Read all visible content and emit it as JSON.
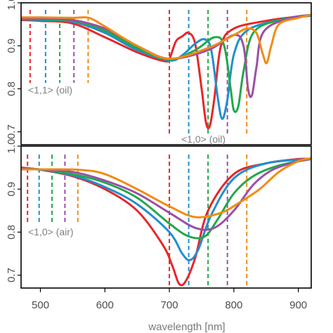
{
  "chart_data": [
    {
      "type": "line",
      "panel": "top",
      "xlim": [
        470,
        920
      ],
      "ylim": [
        0.67,
        1.0
      ],
      "y_ticks": [
        0.7,
        0.8,
        0.9,
        1.0
      ],
      "y_tick_labels": [
        "0.7",
        "0.8",
        "0.9",
        "1.0"
      ],
      "annotations": [
        "<1,1> (oil)",
        "<1,0> (oil)"
      ],
      "markers": [
        {
          "x": 484,
          "color": "#e8262a"
        },
        {
          "x": 508,
          "color": "#1f8fd1"
        },
        {
          "x": 530,
          "color": "#22a84a"
        },
        {
          "x": 552,
          "color": "#9b4fa8"
        },
        {
          "x": 574,
          "color": "#f08c13"
        },
        {
          "x": 700,
          "color": "#e8262a"
        },
        {
          "x": 730,
          "color": "#1f8fd1"
        },
        {
          "x": 760,
          "color": "#22a84a"
        },
        {
          "x": 790,
          "color": "#9b4fa8"
        },
        {
          "x": 820,
          "color": "#f08c13"
        }
      ],
      "series": [
        {
          "color": "#e8262a",
          "points": [
            [
              470,
              0.96
            ],
            [
              500,
              0.958
            ],
            [
              550,
              0.952
            ],
            [
              600,
              0.92
            ],
            [
              650,
              0.885
            ],
            [
              690,
              0.865
            ],
            [
              700,
              0.87
            ],
            [
              710,
              0.91
            ],
            [
              720,
              0.922
            ],
            [
              730,
              0.93
            ],
            [
              740,
              0.905
            ],
            [
              750,
              0.8
            ],
            [
              757,
              0.72
            ],
            [
              763,
              0.715
            ],
            [
              770,
              0.78
            ],
            [
              780,
              0.9
            ],
            [
              800,
              0.94
            ],
            [
              850,
              0.958
            ],
            [
              900,
              0.968
            ],
            [
              920,
              0.97
            ]
          ]
        },
        {
          "color": "#1f8fd1",
          "points": [
            [
              470,
              0.962
            ],
            [
              500,
              0.96
            ],
            [
              550,
              0.956
            ],
            [
              600,
              0.93
            ],
            [
              650,
              0.89
            ],
            [
              700,
              0.866
            ],
            [
              720,
              0.878
            ],
            [
              740,
              0.905
            ],
            [
              755,
              0.915
            ],
            [
              765,
              0.89
            ],
            [
              775,
              0.78
            ],
            [
              782,
              0.73
            ],
            [
              790,
              0.775
            ],
            [
              800,
              0.88
            ],
            [
              820,
              0.935
            ],
            [
              870,
              0.96
            ],
            [
              920,
              0.97
            ]
          ]
        },
        {
          "color": "#22a84a",
          "points": [
            [
              470,
              0.963
            ],
            [
              500,
              0.962
            ],
            [
              550,
              0.958
            ],
            [
              600,
              0.935
            ],
            [
              650,
              0.895
            ],
            [
              700,
              0.868
            ],
            [
              740,
              0.89
            ],
            [
              770,
              0.92
            ],
            [
              785,
              0.9
            ],
            [
              795,
              0.8
            ],
            [
              800,
              0.75
            ],
            [
              807,
              0.76
            ],
            [
              815,
              0.84
            ],
            [
              830,
              0.93
            ],
            [
              870,
              0.96
            ],
            [
              920,
              0.972
            ]
          ]
        },
        {
          "color": "#9b4fa8",
          "points": [
            [
              470,
              0.964
            ],
            [
              500,
              0.964
            ],
            [
              550,
              0.96
            ],
            [
              600,
              0.94
            ],
            [
              650,
              0.9
            ],
            [
              700,
              0.87
            ],
            [
              760,
              0.89
            ],
            [
              800,
              0.925
            ],
            [
              815,
              0.9
            ],
            [
              822,
              0.8
            ],
            [
              828,
              0.785
            ],
            [
              835,
              0.85
            ],
            [
              845,
              0.93
            ],
            [
              880,
              0.962
            ],
            [
              920,
              0.972
            ]
          ]
        },
        {
          "color": "#f08c13",
          "points": [
            [
              470,
              0.966
            ],
            [
              500,
              0.966
            ],
            [
              550,
              0.965
            ],
            [
              575,
              0.965
            ],
            [
              600,
              0.945
            ],
            [
              650,
              0.9
            ],
            [
              700,
              0.87
            ],
            [
              760,
              0.895
            ],
            [
              800,
              0.925
            ],
            [
              820,
              0.94
            ],
            [
              835,
              0.93
            ],
            [
              845,
              0.88
            ],
            [
              851,
              0.86
            ],
            [
              858,
              0.9
            ],
            [
              870,
              0.95
            ],
            [
              900,
              0.965
            ],
            [
              920,
              0.972
            ]
          ]
        }
      ]
    },
    {
      "type": "line",
      "panel": "bottom",
      "xlim": [
        470,
        920
      ],
      "ylim": [
        0.67,
        1.0
      ],
      "y_ticks": [
        0.7,
        0.8,
        0.9,
        1.0
      ],
      "y_tick_labels": [
        "0.7",
        "0.8",
        "0.9",
        "1.0"
      ],
      "x_ticks": [
        500,
        600,
        700,
        800,
        900
      ],
      "x_tick_labels": [
        "500",
        "600",
        "700",
        "800",
        "900"
      ],
      "xlabel": "wavelength [nm]",
      "annotations": [
        "<1,0> (air)"
      ],
      "markers": [
        {
          "x": 480,
          "color": "#e8262a"
        },
        {
          "x": 498,
          "color": "#1f8fd1"
        },
        {
          "x": 518,
          "color": "#22a84a"
        },
        {
          "x": 538,
          "color": "#9b4fa8"
        },
        {
          "x": 558,
          "color": "#f08c13"
        },
        {
          "x": 700,
          "color": "#e8262a"
        },
        {
          "x": 730,
          "color": "#1f8fd1"
        },
        {
          "x": 760,
          "color": "#22a84a"
        },
        {
          "x": 790,
          "color": "#9b4fa8"
        },
        {
          "x": 820,
          "color": "#f08c13"
        }
      ],
      "series": [
        {
          "color": "#e8262a",
          "points": [
            [
              470,
              0.95
            ],
            [
              500,
              0.945
            ],
            [
              550,
              0.93
            ],
            [
              600,
              0.9
            ],
            [
              650,
              0.85
            ],
            [
              690,
              0.77
            ],
            [
              705,
              0.72
            ],
            [
              715,
              0.68
            ],
            [
              725,
              0.685
            ],
            [
              740,
              0.74
            ],
            [
              760,
              0.85
            ],
            [
              800,
              0.935
            ],
            [
              850,
              0.96
            ],
            [
              900,
              0.97
            ],
            [
              920,
              0.97
            ]
          ]
        },
        {
          "color": "#1f8fd1",
          "points": [
            [
              470,
              0.948
            ],
            [
              500,
              0.945
            ],
            [
              550,
              0.932
            ],
            [
              600,
              0.905
            ],
            [
              650,
              0.865
            ],
            [
              700,
              0.8
            ],
            [
              720,
              0.75
            ],
            [
              732,
              0.735
            ],
            [
              745,
              0.76
            ],
            [
              765,
              0.84
            ],
            [
              800,
              0.925
            ],
            [
              850,
              0.96
            ],
            [
              920,
              0.97
            ]
          ]
        },
        {
          "color": "#22a84a",
          "points": [
            [
              470,
              0.948
            ],
            [
              500,
              0.946
            ],
            [
              550,
              0.935
            ],
            [
              600,
              0.915
            ],
            [
              650,
              0.88
            ],
            [
              700,
              0.82
            ],
            [
              730,
              0.79
            ],
            [
              755,
              0.79
            ],
            [
              775,
              0.83
            ],
            [
              800,
              0.89
            ],
            [
              830,
              0.93
            ],
            [
              870,
              0.955
            ],
            [
              920,
              0.97
            ]
          ]
        },
        {
          "color": "#9b4fa8",
          "points": [
            [
              470,
              0.947
            ],
            [
              500,
              0.946
            ],
            [
              550,
              0.94
            ],
            [
              600,
              0.92
            ],
            [
              650,
              0.89
            ],
            [
              700,
              0.845
            ],
            [
              740,
              0.81
            ],
            [
              770,
              0.81
            ],
            [
              800,
              0.85
            ],
            [
              830,
              0.91
            ],
            [
              860,
              0.945
            ],
            [
              900,
              0.965
            ],
            [
              920,
              0.97
            ]
          ]
        },
        {
          "color": "#f08c13",
          "points": [
            [
              470,
              0.946
            ],
            [
              500,
              0.946
            ],
            [
              560,
              0.945
            ],
            [
              600,
              0.935
            ],
            [
              650,
              0.9
            ],
            [
              700,
              0.86
            ],
            [
              740,
              0.835
            ],
            [
              780,
              0.845
            ],
            [
              810,
              0.87
            ],
            [
              840,
              0.9
            ],
            [
              870,
              0.94
            ],
            [
              900,
              0.965
            ],
            [
              920,
              0.972
            ]
          ]
        }
      ]
    }
  ]
}
